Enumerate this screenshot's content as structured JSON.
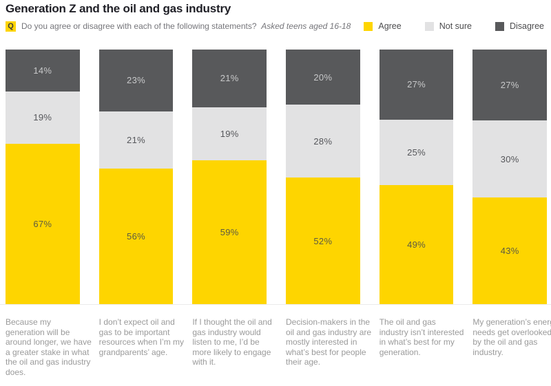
{
  "header": {
    "q_label": "Q"
  },
  "chart_data": {
    "type": "bar",
    "stacked": true,
    "orientation": "vertical",
    "title": "Generation Z and the oil and gas industry",
    "question": "Do you agree or disagree with each of the following statements?",
    "note": "Asked teens aged 16-18",
    "unit": "%",
    "ylim": [
      0,
      100
    ],
    "grid": false,
    "legend_position": "top-right",
    "categories": [
      "Because my generation will be around longer, we have a greater stake in what the oil and gas industry does.",
      "I don’t expect oil and gas to be important resources when I’m my grandparents’ age.",
      "If I thought the oil and gas industry would listen to me, I’d be more likely to engage with it.",
      "Decision-makers in the oil and gas industry are mostly interested in what’s best for people their age.",
      "The oil and gas industry isn’t interested in what’s best for my generation.",
      "My generation’s energy needs get overlooked by the oil and gas industry."
    ],
    "series": [
      {
        "name": "Agree",
        "color": "#fed500",
        "value_color": "#5d5b42",
        "values": [
          67,
          56,
          59,
          52,
          49,
          43
        ]
      },
      {
        "name": "Not sure",
        "color": "#e2e2e3",
        "value_color": "#55565a",
        "values": [
          19,
          21,
          19,
          28,
          25,
          30
        ]
      },
      {
        "name": "Disagree",
        "color": "#58595b",
        "value_color": "#c8c9ca",
        "values": [
          14,
          23,
          21,
          20,
          27,
          27
        ]
      }
    ],
    "stack_order_top_to_bottom": [
      "Disagree",
      "Not sure",
      "Agree"
    ]
  }
}
